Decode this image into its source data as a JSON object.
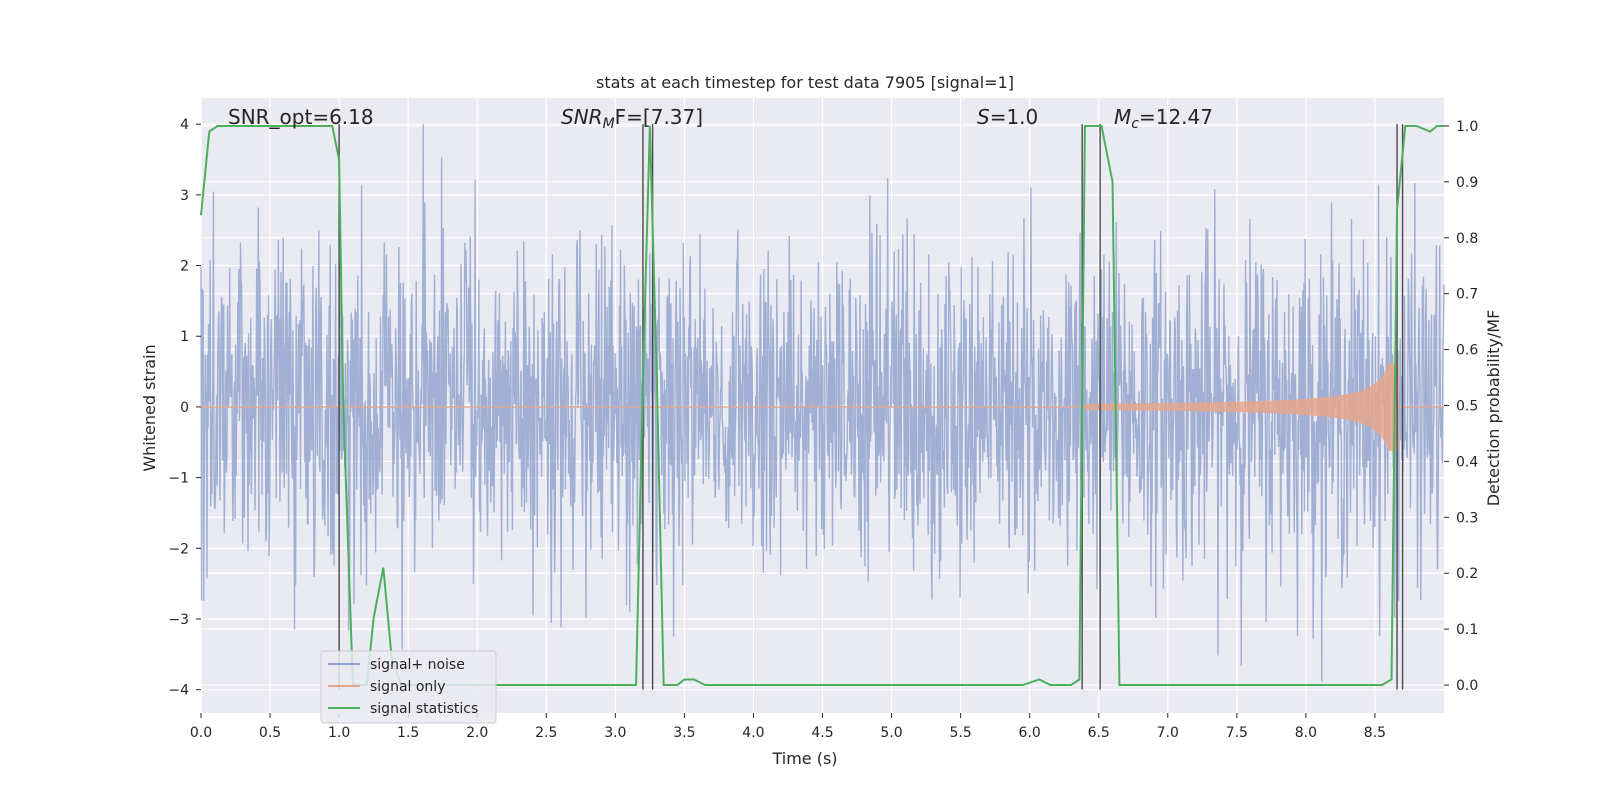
{
  "chart_data": {
    "type": "line",
    "title": "stats at each timestep for test data 7905 [signal=1]",
    "xlabel": "Time (s)",
    "ylabel_left": "Whitened strain",
    "ylabel_right": "Detection probability/MF",
    "xlim": [
      0.0,
      9.0
    ],
    "ylim_left": [
      -4.33,
      4.37
    ],
    "ylim_right": [
      -0.05,
      1.05
    ],
    "x_ticks": [
      "0.0",
      "0.5",
      "1.0",
      "1.5",
      "2.0",
      "2.5",
      "3.0",
      "3.5",
      "4.0",
      "4.5",
      "5.0",
      "5.5",
      "6.0",
      "6.5",
      "7.0",
      "7.5",
      "8.0",
      "8.5"
    ],
    "y_left_ticks": [
      "−4",
      "−3",
      "−2",
      "−1",
      "0",
      "1",
      "2",
      "3",
      "4"
    ],
    "y_right_ticks": [
      "0.0",
      "0.1",
      "0.2",
      "0.3",
      "0.4",
      "0.5",
      "0.6",
      "0.7",
      "0.8",
      "0.9",
      "1.0"
    ],
    "grid": true,
    "legend_position": "lower-left",
    "annotations": {
      "snr_opt": "SNR_opt=6.18",
      "snr_mf_base": "SNR",
      "snr_mf_sub": "M",
      "snr_mf_rest": "F=[7.37]",
      "s_base": "S",
      "s_rest": "=1.0",
      "mc_base": "M",
      "mc_sub": "c",
      "mc_rest": "=12.47"
    },
    "series": [
      {
        "name": "signal+ noise",
        "color": "#8da0cb",
        "description_values": "whitened noise, roughly Gaussian with std ~1, peaks up to about ±4",
        "envelope": {
          "typical_min": -2.3,
          "typical_max": 2.3,
          "extreme_min": -3.95,
          "extreme_max": 4.0
        }
      },
      {
        "name": "signal only",
        "color": "#e5a68c",
        "chirp": {
          "start_time": 6.4,
          "merger_time": 8.65,
          "amplitude_at_6_5": 0.05,
          "amplitude_at_8_6": 0.6
        }
      },
      {
        "name": "signal statistics",
        "color": "#4daf5c",
        "x": [
          0.0,
          0.06,
          0.12,
          0.3,
          0.6,
          0.95,
          1.0,
          1.03,
          1.1,
          1.2,
          1.25,
          1.32,
          1.38,
          1.45,
          1.5,
          2.0,
          2.5,
          3.0,
          3.15,
          3.2,
          3.25,
          3.3,
          3.35,
          3.4,
          3.45,
          3.5,
          3.57,
          3.65,
          3.8,
          4.5,
          5.0,
          5.5,
          5.95,
          6.07,
          6.15,
          6.3,
          6.36,
          6.4,
          6.45,
          6.52,
          6.6,
          6.65,
          6.8,
          7.5,
          8.0,
          8.55,
          8.62,
          8.66,
          8.72,
          8.8,
          8.9,
          8.95,
          9.0
        ],
        "y": [
          0.84,
          0.99,
          1.0,
          1.0,
          1.0,
          1.0,
          0.94,
          0.5,
          0.0,
          0.0,
          0.12,
          0.21,
          0.05,
          0.0,
          0.0,
          0.0,
          0.0,
          0.0,
          0.0,
          0.55,
          1.0,
          0.55,
          0.0,
          0.0,
          0.0,
          0.01,
          0.01,
          0.0,
          0.0,
          0.0,
          0.0,
          0.0,
          0.0,
          0.01,
          0.0,
          0.0,
          0.01,
          1.0,
          1.0,
          1.0,
          0.9,
          0.0,
          0.0,
          0.0,
          0.0,
          0.0,
          0.01,
          0.85,
          1.0,
          1.0,
          0.99,
          1.0,
          1.0
        ]
      }
    ],
    "vertical_markers_time": [
      1.0,
      3.2,
      3.27,
      6.38,
      6.51,
      8.66,
      8.7
    ]
  }
}
